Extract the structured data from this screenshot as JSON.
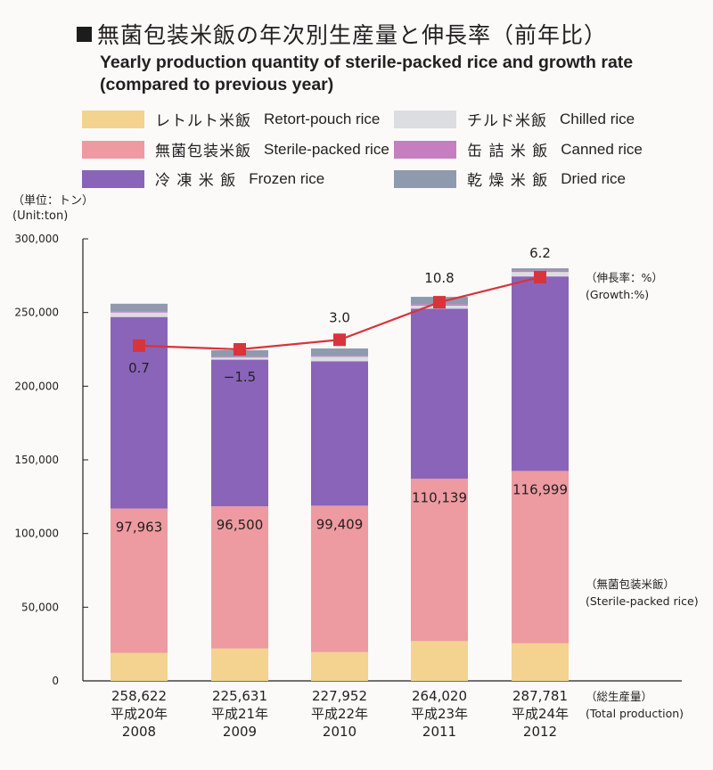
{
  "title": {
    "japanese": "無菌包装米飯の年次別生産量と伸長率（前年比）",
    "english_line1": "Yearly production quantity of sterile-packed rice and growth rate",
    "english_line2": "(compared to previous year)"
  },
  "legend": [
    {
      "jp": "レトルト米飯",
      "en": "Retort-pouch rice",
      "color": "#f3d38f"
    },
    {
      "jp": "チルド米飯",
      "en": "Chilled rice",
      "color": "#dcdde0"
    },
    {
      "jp": "無菌包装米飯",
      "en": "Sterile-packed rice",
      "color": "#ee9aa1"
    },
    {
      "jp": "缶 詰 米 飯",
      "en": "Canned rice",
      "color": "#c57fc0"
    },
    {
      "jp": "冷 凍 米 飯",
      "en": "Frozen rice",
      "color": "#8a64b8"
    },
    {
      "jp": "乾 燥 米 飯",
      "en": "Dried rice",
      "color": "#8e9aae"
    }
  ],
  "unit": {
    "jp": "（単位：トン）",
    "en": "(Unit:ton)"
  },
  "annotations": {
    "growth_jp": "（伸長率：%）",
    "growth_en": "(Growth:%)",
    "sterile_jp": "（無菌包装米飯）",
    "sterile_en": "(Sterile-packed rice)",
    "total_jp": "（総生産量）",
    "total_en": "(Total production)"
  },
  "chart_data": {
    "type": "bar",
    "stacked": true,
    "categories": [
      "2008",
      "2009",
      "2010",
      "2011",
      "2012"
    ],
    "category_labels_jp": [
      "平成20年",
      "平成21年",
      "平成22年",
      "平成23年",
      "平成24年"
    ],
    "total_production_labels": [
      "258,622",
      "225,631",
      "227,952",
      "264,020",
      "287,781"
    ],
    "series": [
      {
        "name": "Retort-pouch rice",
        "color": "#f3d38f",
        "values": [
          19000,
          22000,
          19500,
          27000,
          25500
        ]
      },
      {
        "name": "Sterile-packed rice",
        "color": "#ee9aa1",
        "values": [
          97963,
          96500,
          99409,
          110139,
          116999
        ]
      },
      {
        "name": "Frozen rice",
        "color": "#8a64b8",
        "values": [
          130000,
          99500,
          98000,
          115500,
          132000
        ]
      },
      {
        "name": "Chilled rice",
        "color": "#dcdde0",
        "values": [
          3000,
          1500,
          3000,
          2000,
          3000
        ]
      },
      {
        "name": "Canned rice",
        "color": "#c57fc0",
        "values": [
          1000,
          700,
          700,
          1000,
          1000
        ]
      },
      {
        "name": "Dried rice",
        "color": "#8e9aae",
        "values": [
          5000,
          4200,
          5000,
          5000,
          1500
        ]
      }
    ],
    "sterile_value_labels": [
      "97,963",
      "96,500",
      "99,409",
      "110,139",
      "116,999"
    ],
    "growth_line": {
      "name": "Growth:%",
      "color": "#d8343c",
      "plot_values": [
        227500,
        225000,
        231500,
        257000,
        274000
      ],
      "labels": [
        "0.7",
        "−1.5",
        "3.0",
        "10.8",
        "6.2"
      ]
    },
    "y_ticks": [
      "0",
      "50,000",
      "100,000",
      "150,000",
      "200,000",
      "250,000",
      "300,000"
    ],
    "ylim": [
      0,
      300000
    ],
    "grid": false
  }
}
